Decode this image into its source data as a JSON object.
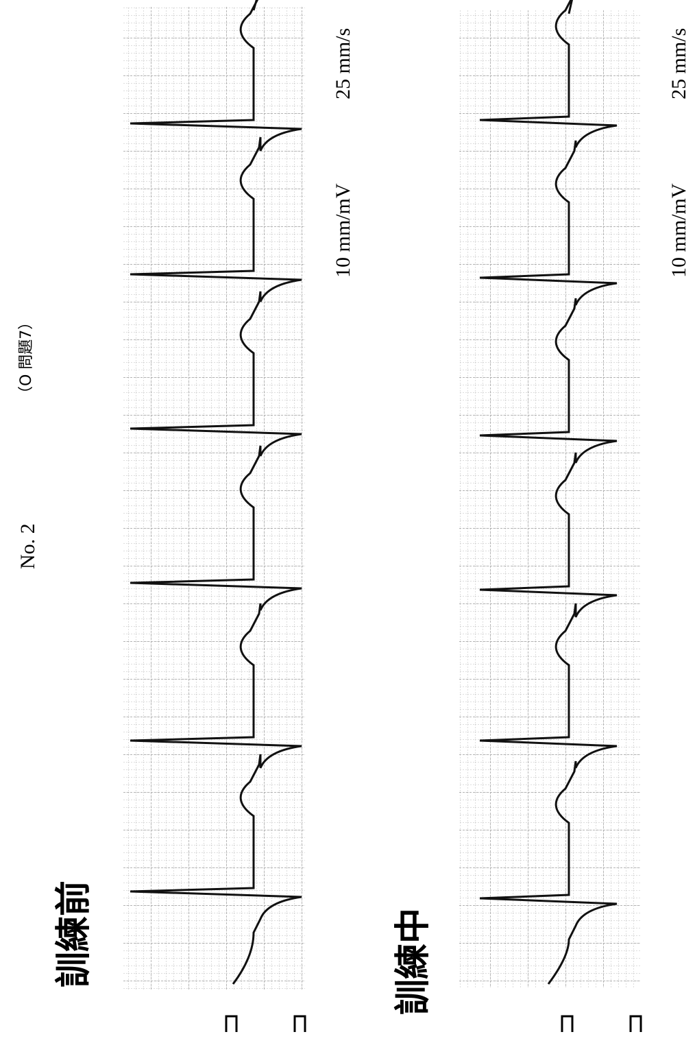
{
  "header": {
    "number": "No.  2",
    "question": "（O 問題7）"
  },
  "strips": [
    {
      "label": "訓練前",
      "sensitivity": "10 mm/mV",
      "speed": "25 mm/s"
    },
    {
      "label": "訓練中",
      "sensitivity": "10 mm/mV",
      "speed": "25 mm/s"
    }
  ]
}
